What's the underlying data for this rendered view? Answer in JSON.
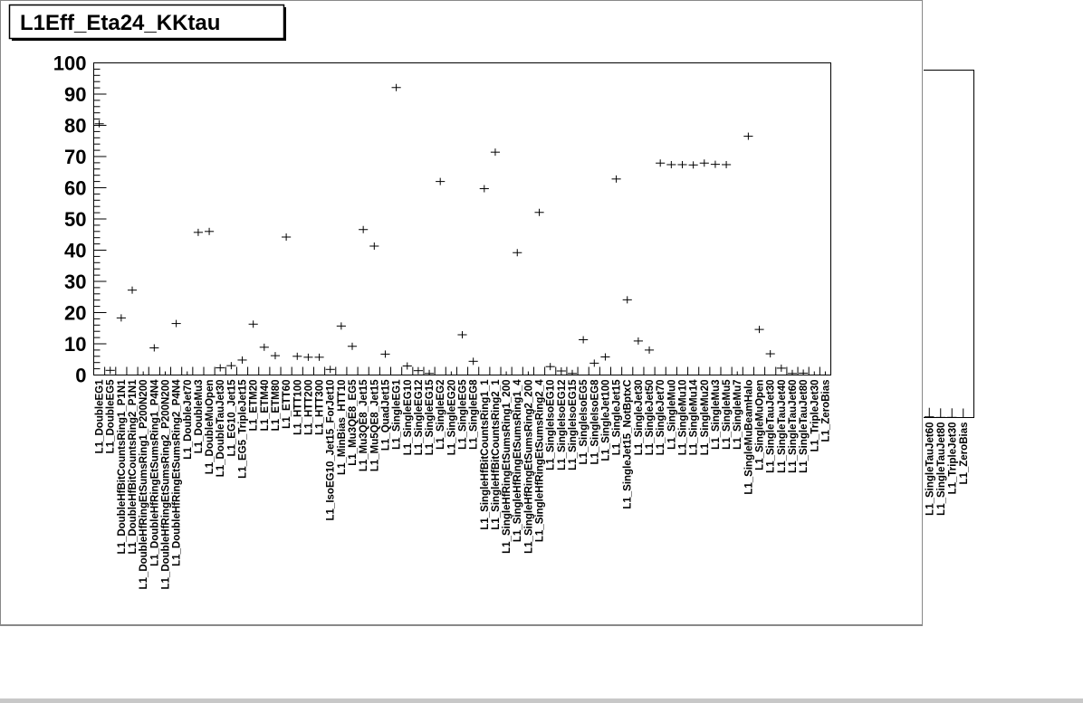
{
  "chart_data": {
    "type": "scatter",
    "title": "L1Eff_Eta24_KKtau",
    "xlabel": "",
    "ylabel": "",
    "ylim": [
      0,
      100
    ],
    "yticks": [
      0,
      10,
      20,
      30,
      40,
      50,
      60,
      70,
      80,
      90,
      100
    ],
    "grid": false,
    "categories": [
      "L1_DoubleEG1",
      "L1_DoubleEG5",
      "L1_DoubleHfBitCountsRing1_P1N1",
      "L1_DoubleHfBitCountsRing2_P1N1",
      "L1_DoubleHfRingEtSumsRing1_P200N200",
      "L1_DoubleHfRingEtSumsRing1_P4N4",
      "L1_DoubleHfRingEtSumsRing2_P200N200",
      "L1_DoubleHfRingEtSumsRing2_P4N4",
      "L1_DoubleJet70",
      "L1_DoubleMu3",
      "L1_DoubleMuOpen",
      "L1_DoubleTauJet30",
      "L1_EG10_Jet15",
      "L1_EG5_TripleJet15",
      "L1_ETM20",
      "L1_ETM40",
      "L1_ETM80",
      "L1_ETT60",
      "L1_HTT100",
      "L1_HTT200",
      "L1_HTT300",
      "L1_IsoEG10_Jet15_ForJet10",
      "L1_MinBias_HTT10",
      "L1_Mu3QE8_EG5",
      "L1_Mu3QE8_Jet15",
      "L1_Mu5QE8_Jet15",
      "L1_QuadJet15",
      "L1_SingleEG1",
      "L1_SingleEG10",
      "L1_SingleEG12",
      "L1_SingleEG15",
      "L1_SingleEG2",
      "L1_SingleEG20",
      "L1_SingleEG5",
      "L1_SingleEG8",
      "L1_SingleHfBitCountsRing1_1",
      "L1_SingleHfBitCountsRing2_1",
      "L1_SingleHfRingEtSumsRing1_200",
      "L1_SingleHfRingEtSumsRing1_4",
      "L1_SingleHfRingEtSumsRing2_200",
      "L1_SingleHfRingEtSumsRing2_4",
      "L1_SingleIsoEG10",
      "L1_SingleIsoEG12",
      "L1_SingleIsoEG15",
      "L1_SingleIsoEG5",
      "L1_SingleIsoEG8",
      "L1_SingleJet100",
      "L1_SingleJet15",
      "L1_SingleJet15_NotBptxC",
      "L1_SingleJet30",
      "L1_SingleJet50",
      "L1_SingleJet70",
      "L1_SingleMu0",
      "L1_SingleMu10",
      "L1_SingleMu14",
      "L1_SingleMu20",
      "L1_SingleMu3",
      "L1_SingleMu5",
      "L1_SingleMu7",
      "L1_SingleMuBeamHalo",
      "L1_SingleMuOpen",
      "L1_SingleTauJet30",
      "L1_SingleTauJet40",
      "L1_SingleTauJet60",
      "L1_SingleTauJet80",
      "L1_TripleJet30",
      "L1_ZeroBias"
    ],
    "values": [
      80.5,
      1.5,
      18.3,
      27.2,
      0,
      8.7,
      0,
      16.5,
      0,
      45.7,
      46.0,
      2.3,
      3.0,
      4.8,
      16.3,
      8.9,
      6.2,
      44.2,
      6.0,
      5.7,
      5.7,
      1.8,
      15.7,
      9.2,
      46.6,
      41.3,
      6.7,
      92.1,
      2.9,
      1.4,
      0.5,
      62.0,
      0,
      12.9,
      4.4,
      59.7,
      71.4,
      0,
      39.2,
      0,
      52.1,
      2.7,
      1.3,
      0.5,
      11.3,
      3.8,
      5.8,
      62.8,
      24.1,
      10.9,
      8.0,
      67.9,
      67.4,
      67.4,
      67.3,
      67.9,
      67.5,
      67.4,
      0,
      76.5,
      14.6,
      6.8,
      2.2,
      0.5,
      0.6,
      0,
      0
    ],
    "overflow_panel": {
      "categories": [
        "L1_SingleTauJet60",
        "L1_SingleTauJet80",
        "L1_TripleJet30",
        "L1_ZeroBias"
      ],
      "values": [
        2.2,
        0.5,
        0.6,
        0
      ]
    }
  }
}
